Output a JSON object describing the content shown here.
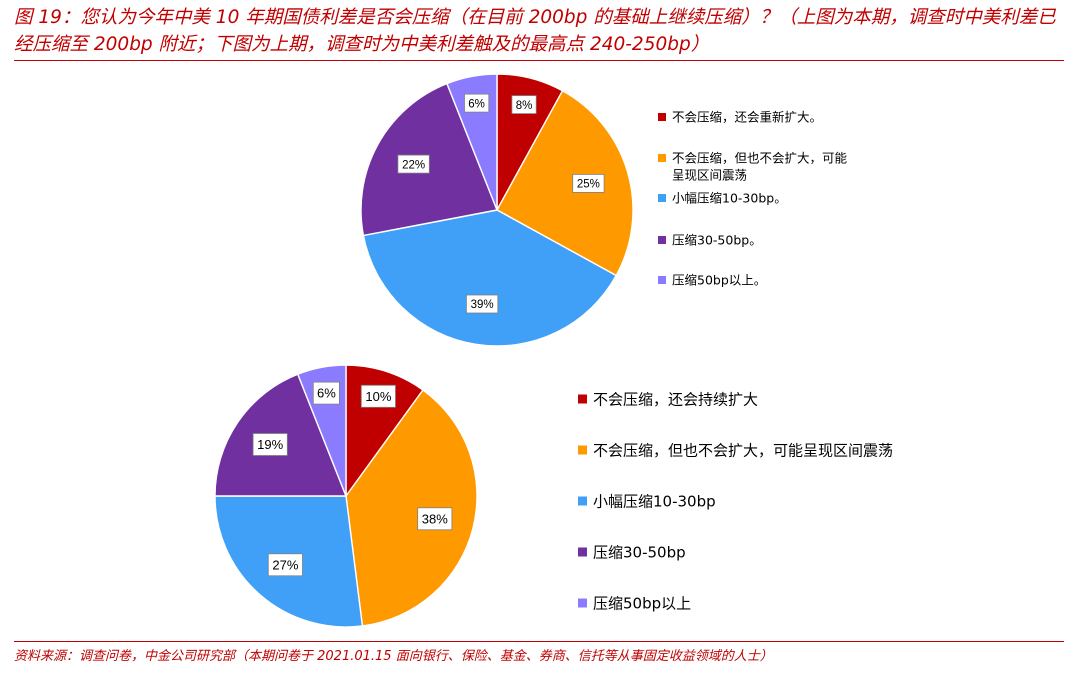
{
  "title": "图 19：您认为今年中美 10 年期国债利差是否会压缩（在目前 200bp 的基础上继续压缩）？（上图为本期，调查时中美利差已经压缩至 200bp 附近；下图为上期，调查时为中美利差触及的最高点 240-250bp）",
  "source": "资料来源：调查问卷，中金公司研究部（本期问卷于 2021.01.15 面向银行、保险、基金、券商、信托等从事固定收益领域的人士）",
  "colors": [
    "#c00000",
    "#ff9900",
    "#40a0f8",
    "#7030a0",
    "#8b7cff"
  ],
  "chart_data": [
    {
      "type": "pie",
      "title": "",
      "categories": [
        "不会压缩，还会重新扩大。",
        "不会压缩，但也不会扩大，可能呈现区间震荡",
        "小幅压缩10-30bp。",
        "压缩30-50bp。",
        "压缩50bp以上。"
      ],
      "values": [
        8,
        25,
        39,
        22,
        6
      ],
      "data_labels": [
        "8%",
        "25%",
        "39%",
        "22%",
        "6%"
      ],
      "legend_position": "right"
    },
    {
      "type": "pie",
      "title": "",
      "categories": [
        "不会压缩，还会持续扩大",
        "不会压缩，但也不会扩大，可能呈现区间震荡",
        "小幅压缩10-30bp",
        "压缩30-50bp",
        "压缩50bp以上"
      ],
      "values": [
        10,
        38,
        27,
        19,
        6
      ],
      "data_labels": [
        "10%",
        "38%",
        "27%",
        "19%",
        "6%"
      ],
      "legend_position": "right"
    }
  ]
}
